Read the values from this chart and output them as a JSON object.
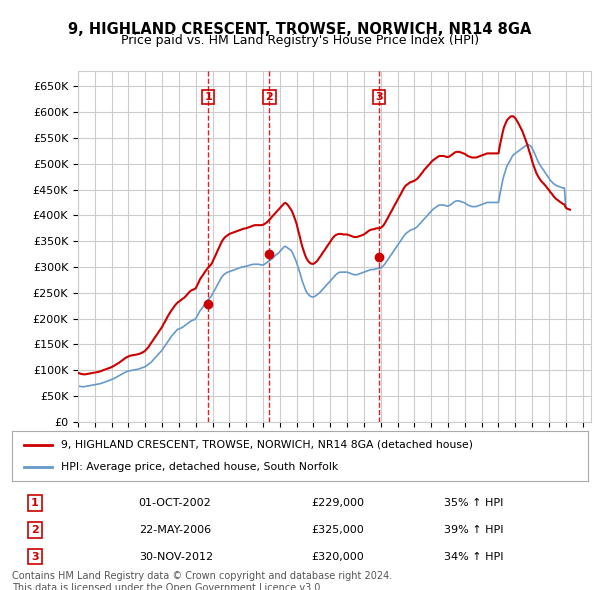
{
  "title": "9, HIGHLAND CRESCENT, TROWSE, NORWICH, NR14 8GA",
  "subtitle": "Price paid vs. HM Land Registry's House Price Index (HPI)",
  "title_fontsize": 11,
  "subtitle_fontsize": 10,
  "ylabel_ticks": [
    "£0",
    "£50K",
    "£100K",
    "£150K",
    "£200K",
    "£250K",
    "£300K",
    "£350K",
    "£400K",
    "£450K",
    "£500K",
    "£550K",
    "£600K",
    "£650K"
  ],
  "ytick_values": [
    0,
    50000,
    100000,
    150000,
    200000,
    250000,
    300000,
    350000,
    400000,
    450000,
    500000,
    550000,
    600000,
    650000
  ],
  "ylim": [
    0,
    680000
  ],
  "xlim_start": 1995.0,
  "xlim_end": 2025.5,
  "background_color": "#ffffff",
  "grid_color": "#cccccc",
  "sale_color": "#cc0000",
  "hpi_color": "#6699cc",
  "sale_marker_color": "#cc0000",
  "dashed_line_color": "#cc0000",
  "sales": [
    {
      "label": "1",
      "date_num": 2002.75,
      "price": 229000
    },
    {
      "label": "2",
      "date_num": 2006.38,
      "price": 325000
    },
    {
      "label": "3",
      "date_num": 2012.91,
      "price": 320000
    }
  ],
  "table_rows": [
    {
      "num": "1",
      "date": "01-OCT-2002",
      "price": "£229,000",
      "change": "35% ↑ HPI"
    },
    {
      "num": "2",
      "date": "22-MAY-2006",
      "price": "£325,000",
      "change": "39% ↑ HPI"
    },
    {
      "num": "3",
      "date": "30-NOV-2012",
      "price": "£320,000",
      "change": "34% ↑ HPI"
    }
  ],
  "legend_line1": "9, HIGHLAND CRESCENT, TROWSE, NORWICH, NR14 8GA (detached house)",
  "legend_line2": "HPI: Average price, detached house, South Norfolk",
  "footer": "Contains HM Land Registry data © Crown copyright and database right 2024.\nThis data is licensed under the Open Government Licence v3.0.",
  "hpi_data_x": [
    1995.0,
    1995.08,
    1995.17,
    1995.25,
    1995.33,
    1995.42,
    1995.5,
    1995.58,
    1995.67,
    1995.75,
    1995.83,
    1995.92,
    1996.0,
    1996.08,
    1996.17,
    1996.25,
    1996.33,
    1996.42,
    1996.5,
    1996.58,
    1996.67,
    1996.75,
    1996.83,
    1996.92,
    1997.0,
    1997.08,
    1997.17,
    1997.25,
    1997.33,
    1997.42,
    1997.5,
    1997.58,
    1997.67,
    1997.75,
    1997.83,
    1997.92,
    1998.0,
    1998.08,
    1998.17,
    1998.25,
    1998.33,
    1998.42,
    1998.5,
    1998.58,
    1998.67,
    1998.75,
    1998.83,
    1998.92,
    1999.0,
    1999.08,
    1999.17,
    1999.25,
    1999.33,
    1999.42,
    1999.5,
    1999.58,
    1999.67,
    1999.75,
    1999.83,
    1999.92,
    2000.0,
    2000.08,
    2000.17,
    2000.25,
    2000.33,
    2000.42,
    2000.5,
    2000.58,
    2000.67,
    2000.75,
    2000.83,
    2000.92,
    2001.0,
    2001.08,
    2001.17,
    2001.25,
    2001.33,
    2001.42,
    2001.5,
    2001.58,
    2001.67,
    2001.75,
    2001.83,
    2001.92,
    2002.0,
    2002.08,
    2002.17,
    2002.25,
    2002.33,
    2002.42,
    2002.5,
    2002.58,
    2002.67,
    2002.75,
    2002.83,
    2002.92,
    2003.0,
    2003.08,
    2003.17,
    2003.25,
    2003.33,
    2003.42,
    2003.5,
    2003.58,
    2003.67,
    2003.75,
    2003.83,
    2003.92,
    2004.0,
    2004.08,
    2004.17,
    2004.25,
    2004.33,
    2004.42,
    2004.5,
    2004.58,
    2004.67,
    2004.75,
    2004.83,
    2004.92,
    2005.0,
    2005.08,
    2005.17,
    2005.25,
    2005.33,
    2005.42,
    2005.5,
    2005.58,
    2005.67,
    2005.75,
    2005.83,
    2005.92,
    2006.0,
    2006.08,
    2006.17,
    2006.25,
    2006.33,
    2006.42,
    2006.5,
    2006.58,
    2006.67,
    2006.75,
    2006.83,
    2006.92,
    2007.0,
    2007.08,
    2007.17,
    2007.25,
    2007.33,
    2007.42,
    2007.5,
    2007.58,
    2007.67,
    2007.75,
    2007.83,
    2007.92,
    2008.0,
    2008.08,
    2008.17,
    2008.25,
    2008.33,
    2008.42,
    2008.5,
    2008.58,
    2008.67,
    2008.75,
    2008.83,
    2008.92,
    2009.0,
    2009.08,
    2009.17,
    2009.25,
    2009.33,
    2009.42,
    2009.5,
    2009.58,
    2009.67,
    2009.75,
    2009.83,
    2009.92,
    2010.0,
    2010.08,
    2010.17,
    2010.25,
    2010.33,
    2010.42,
    2010.5,
    2010.58,
    2010.67,
    2010.75,
    2010.83,
    2010.92,
    2011.0,
    2011.08,
    2011.17,
    2011.25,
    2011.33,
    2011.42,
    2011.5,
    2011.58,
    2011.67,
    2011.75,
    2011.83,
    2011.92,
    2012.0,
    2012.08,
    2012.17,
    2012.25,
    2012.33,
    2012.42,
    2012.5,
    2012.58,
    2012.67,
    2012.75,
    2012.83,
    2012.92,
    2013.0,
    2013.08,
    2013.17,
    2013.25,
    2013.33,
    2013.42,
    2013.5,
    2013.58,
    2013.67,
    2013.75,
    2013.83,
    2013.92,
    2014.0,
    2014.08,
    2014.17,
    2014.25,
    2014.33,
    2014.42,
    2014.5,
    2014.58,
    2014.67,
    2014.75,
    2014.83,
    2014.92,
    2015.0,
    2015.08,
    2015.17,
    2015.25,
    2015.33,
    2015.42,
    2015.5,
    2015.58,
    2015.67,
    2015.75,
    2015.83,
    2015.92,
    2016.0,
    2016.08,
    2016.17,
    2016.25,
    2016.33,
    2016.42,
    2016.5,
    2016.58,
    2016.67,
    2016.75,
    2016.83,
    2016.92,
    2017.0,
    2017.08,
    2017.17,
    2017.25,
    2017.33,
    2017.42,
    2017.5,
    2017.58,
    2017.67,
    2017.75,
    2017.83,
    2017.92,
    2018.0,
    2018.08,
    2018.17,
    2018.25,
    2018.33,
    2018.42,
    2018.5,
    2018.58,
    2018.67,
    2018.75,
    2018.83,
    2018.92,
    2019.0,
    2019.08,
    2019.17,
    2019.25,
    2019.33,
    2019.42,
    2019.5,
    2019.58,
    2019.67,
    2019.75,
    2019.83,
    2019.92,
    2020.0,
    2020.08,
    2020.17,
    2020.25,
    2020.33,
    2020.42,
    2020.5,
    2020.58,
    2020.67,
    2020.75,
    2020.83,
    2020.92,
    2021.0,
    2021.08,
    2021.17,
    2021.25,
    2021.33,
    2021.42,
    2021.5,
    2021.58,
    2021.67,
    2021.75,
    2021.83,
    2021.92,
    2022.0,
    2022.08,
    2022.17,
    2022.25,
    2022.33,
    2022.42,
    2022.5,
    2022.58,
    2022.67,
    2022.75,
    2022.83,
    2022.92,
    2023.0,
    2023.08,
    2023.17,
    2023.25,
    2023.33,
    2023.42,
    2023.5,
    2023.58,
    2023.67,
    2023.75,
    2023.83,
    2023.92,
    2024.0,
    2024.08,
    2024.17,
    2024.25
  ],
  "hpi_data_y": [
    70000,
    69000,
    68500,
    68000,
    68000,
    68500,
    69000,
    69500,
    70000,
    70500,
    71000,
    71500,
    72000,
    72500,
    73000,
    73500,
    74000,
    75000,
    76000,
    77000,
    78000,
    79000,
    80000,
    81000,
    82000,
    83000,
    84500,
    86000,
    87500,
    89000,
    90500,
    92000,
    93500,
    95000,
    96500,
    97500,
    98500,
    99000,
    99500,
    100000,
    100500,
    101000,
    101500,
    102000,
    103000,
    104000,
    105000,
    106000,
    107000,
    109000,
    111000,
    113000,
    115000,
    118000,
    121000,
    124000,
    127000,
    130000,
    133000,
    136000,
    139000,
    143000,
    147000,
    151000,
    155000,
    159000,
    163000,
    167000,
    170000,
    173000,
    176000,
    179000,
    180000,
    181000,
    182500,
    184000,
    186000,
    188000,
    190000,
    192000,
    194000,
    196000,
    197000,
    198000,
    200000,
    205000,
    210000,
    215000,
    218000,
    222000,
    226000,
    230000,
    234000,
    237000,
    240000,
    243000,
    248000,
    253000,
    258000,
    263000,
    268000,
    273000,
    278000,
    282000,
    285000,
    287000,
    289000,
    290000,
    291000,
    292000,
    293000,
    294000,
    295000,
    296000,
    297000,
    298000,
    299000,
    300000,
    300500,
    301000,
    301500,
    302000,
    303000,
    304000,
    304500,
    305000,
    305500,
    305000,
    305500,
    305000,
    304500,
    304000,
    304000,
    305000,
    307000,
    309000,
    311000,
    313000,
    315000,
    317000,
    320000,
    323000,
    325000,
    327000,
    330000,
    333000,
    336000,
    339000,
    340000,
    338000,
    336000,
    334000,
    332000,
    328000,
    322000,
    315000,
    308000,
    300000,
    291000,
    282000,
    273000,
    265000,
    258000,
    252000,
    248000,
    245000,
    243000,
    242000,
    242000,
    243000,
    245000,
    247000,
    249000,
    252000,
    255000,
    258000,
    261000,
    264000,
    267000,
    270000,
    273000,
    276000,
    279000,
    282000,
    285000,
    287000,
    289000,
    290000,
    290000,
    290000,
    290000,
    290000,
    290000,
    289000,
    288000,
    287000,
    286000,
    285000,
    285000,
    285000,
    286000,
    287000,
    288000,
    289000,
    290000,
    291000,
    292000,
    293000,
    294000,
    295000,
    295000,
    295000,
    296000,
    297000,
    297000,
    297000,
    298000,
    300000,
    303000,
    306000,
    310000,
    314000,
    318000,
    322000,
    326000,
    330000,
    334000,
    338000,
    342000,
    346000,
    350000,
    354000,
    358000,
    362000,
    365000,
    367000,
    369000,
    371000,
    372000,
    373000,
    374000,
    376000,
    378000,
    381000,
    384000,
    387000,
    390000,
    393000,
    396000,
    399000,
    402000,
    405000,
    408000,
    411000,
    413000,
    415000,
    417000,
    419000,
    420000,
    420000,
    420000,
    420000,
    419000,
    418000,
    418000,
    419000,
    421000,
    423000,
    425000,
    427000,
    428000,
    428000,
    428000,
    427000,
    426000,
    425000,
    424000,
    422000,
    420000,
    419000,
    418000,
    417000,
    417000,
    417000,
    417000,
    418000,
    419000,
    420000,
    421000,
    422000,
    423000,
    424000,
    425000,
    425000,
    425000,
    425000,
    425000,
    425000,
    425000,
    425000,
    425000,
    440000,
    455000,
    468000,
    478000,
    487000,
    495000,
    500000,
    505000,
    510000,
    515000,
    518000,
    520000,
    522000,
    524000,
    526000,
    528000,
    530000,
    532000,
    534000,
    536000,
    537000,
    536000,
    534000,
    530000,
    525000,
    518000,
    512000,
    506000,
    500000,
    496000,
    492000,
    488000,
    484000,
    480000,
    476000,
    472000,
    468000,
    465000,
    462000,
    460000,
    458000,
    457000,
    456000,
    455000,
    454000,
    453000,
    453000,
    415000,
    413000,
    412000,
    411000
  ],
  "sale_data_x": [
    1995.0,
    1995.08,
    1995.17,
    1995.25,
    1995.33,
    1995.42,
    1995.5,
    1995.58,
    1995.67,
    1995.75,
    1995.83,
    1995.92,
    1996.0,
    1996.08,
    1996.17,
    1996.25,
    1996.33,
    1996.42,
    1996.5,
    1996.58,
    1996.67,
    1996.75,
    1996.83,
    1996.92,
    1997.0,
    1997.08,
    1997.17,
    1997.25,
    1997.33,
    1997.42,
    1997.5,
    1997.58,
    1997.67,
    1997.75,
    1997.83,
    1997.92,
    1998.0,
    1998.08,
    1998.17,
    1998.25,
    1998.33,
    1998.42,
    1998.5,
    1998.58,
    1998.67,
    1998.75,
    1998.83,
    1998.92,
    1999.0,
    1999.08,
    1999.17,
    1999.25,
    1999.33,
    1999.42,
    1999.5,
    1999.58,
    1999.67,
    1999.75,
    1999.83,
    1999.92,
    2000.0,
    2000.08,
    2000.17,
    2000.25,
    2000.33,
    2000.42,
    2000.5,
    2000.58,
    2000.67,
    2000.75,
    2000.83,
    2000.92,
    2001.0,
    2001.08,
    2001.17,
    2001.25,
    2001.33,
    2001.42,
    2001.5,
    2001.58,
    2001.67,
    2001.75,
    2001.83,
    2001.92,
    2002.0,
    2002.08,
    2002.17,
    2002.25,
    2002.33,
    2002.42,
    2002.5,
    2002.58,
    2002.67,
    2002.75,
    2002.83,
    2002.92,
    2003.0,
    2003.08,
    2003.17,
    2003.25,
    2003.33,
    2003.42,
    2003.5,
    2003.58,
    2003.67,
    2003.75,
    2003.83,
    2003.92,
    2004.0,
    2004.08,
    2004.17,
    2004.25,
    2004.33,
    2004.42,
    2004.5,
    2004.58,
    2004.67,
    2004.75,
    2004.83,
    2004.92,
    2005.0,
    2005.08,
    2005.17,
    2005.25,
    2005.33,
    2005.42,
    2005.5,
    2005.58,
    2005.67,
    2005.75,
    2005.83,
    2005.92,
    2006.0,
    2006.08,
    2006.17,
    2006.25,
    2006.33,
    2006.42,
    2006.5,
    2006.58,
    2006.67,
    2006.75,
    2006.83,
    2006.92,
    2007.0,
    2007.08,
    2007.17,
    2007.25,
    2007.33,
    2007.42,
    2007.5,
    2007.58,
    2007.67,
    2007.75,
    2007.83,
    2007.92,
    2008.0,
    2008.08,
    2008.17,
    2008.25,
    2008.33,
    2008.42,
    2008.5,
    2008.58,
    2008.67,
    2008.75,
    2008.83,
    2008.92,
    2009.0,
    2009.08,
    2009.17,
    2009.25,
    2009.33,
    2009.42,
    2009.5,
    2009.58,
    2009.67,
    2009.75,
    2009.83,
    2009.92,
    2010.0,
    2010.08,
    2010.17,
    2010.25,
    2010.33,
    2010.42,
    2010.5,
    2010.58,
    2010.67,
    2010.75,
    2010.83,
    2010.92,
    2011.0,
    2011.08,
    2011.17,
    2011.25,
    2011.33,
    2011.42,
    2011.5,
    2011.58,
    2011.67,
    2011.75,
    2011.83,
    2011.92,
    2012.0,
    2012.08,
    2012.17,
    2012.25,
    2012.33,
    2012.42,
    2012.5,
    2012.58,
    2012.67,
    2012.75,
    2012.83,
    2012.92,
    2013.0,
    2013.08,
    2013.17,
    2013.25,
    2013.33,
    2013.42,
    2013.5,
    2013.58,
    2013.67,
    2013.75,
    2013.83,
    2013.92,
    2014.0,
    2014.08,
    2014.17,
    2014.25,
    2014.33,
    2014.42,
    2014.5,
    2014.58,
    2014.67,
    2014.75,
    2014.83,
    2014.92,
    2015.0,
    2015.08,
    2015.17,
    2015.25,
    2015.33,
    2015.42,
    2015.5,
    2015.58,
    2015.67,
    2015.75,
    2015.83,
    2015.92,
    2016.0,
    2016.08,
    2016.17,
    2016.25,
    2016.33,
    2016.42,
    2016.5,
    2016.58,
    2016.67,
    2016.75,
    2016.83,
    2016.92,
    2017.0,
    2017.08,
    2017.17,
    2017.25,
    2017.33,
    2017.42,
    2017.5,
    2017.58,
    2017.67,
    2017.75,
    2017.83,
    2017.92,
    2018.0,
    2018.08,
    2018.17,
    2018.25,
    2018.33,
    2018.42,
    2018.5,
    2018.58,
    2018.67,
    2018.75,
    2018.83,
    2018.92,
    2019.0,
    2019.08,
    2019.17,
    2019.25,
    2019.33,
    2019.42,
    2019.5,
    2019.58,
    2019.67,
    2019.75,
    2019.83,
    2019.92,
    2020.0,
    2020.08,
    2020.17,
    2020.25,
    2020.33,
    2020.42,
    2020.5,
    2020.58,
    2020.67,
    2020.75,
    2020.83,
    2020.92,
    2021.0,
    2021.08,
    2021.17,
    2021.25,
    2021.33,
    2021.42,
    2021.5,
    2021.58,
    2021.67,
    2021.75,
    2021.83,
    2021.92,
    2022.0,
    2022.08,
    2022.17,
    2022.25,
    2022.33,
    2022.42,
    2022.5,
    2022.58,
    2022.67,
    2022.75,
    2022.83,
    2022.92,
    2023.0,
    2023.08,
    2023.17,
    2023.25,
    2023.33,
    2023.42,
    2023.5,
    2023.58,
    2023.67,
    2023.75,
    2023.83,
    2023.92,
    2024.0,
    2024.08,
    2024.17,
    2024.25
  ],
  "sale_data_y": [
    95000,
    94000,
    93000,
    92500,
    92000,
    92000,
    92500,
    93000,
    93500,
    94000,
    94500,
    95000,
    95500,
    96000,
    96500,
    97000,
    98000,
    99000,
    100000,
    101000,
    102000,
    103000,
    104000,
    105000,
    106000,
    107500,
    109000,
    110500,
    112000,
    114000,
    116000,
    118000,
    120000,
    122000,
    124000,
    125500,
    127000,
    128000,
    128500,
    129000,
    129500,
    130000,
    130500,
    131000,
    132000,
    133000,
    134500,
    136000,
    138000,
    141000,
    144000,
    148000,
    152000,
    156000,
    160000,
    164000,
    168000,
    172000,
    176000,
    180000,
    184000,
    189000,
    194000,
    199000,
    204000,
    209000,
    213000,
    217000,
    221000,
    225000,
    228000,
    231000,
    233000,
    235000,
    237000,
    239000,
    241000,
    244000,
    247000,
    250000,
    253000,
    255000,
    256000,
    257000,
    259000,
    264000,
    270000,
    276000,
    280000,
    284000,
    288000,
    292000,
    296000,
    299000,
    302000,
    305000,
    310000,
    316000,
    322000,
    328000,
    334000,
    340000,
    346000,
    351000,
    355000,
    358000,
    360000,
    362000,
    364000,
    365000,
    366000,
    367000,
    368000,
    369000,
    370000,
    371000,
    372000,
    373000,
    374000,
    374500,
    375000,
    376000,
    377000,
    378000,
    379000,
    380000,
    381000,
    381000,
    381000,
    381000,
    381000,
    381000,
    382000,
    383000,
    385000,
    387000,
    390000,
    393000,
    396000,
    399000,
    402000,
    405000,
    408000,
    411000,
    414000,
    417000,
    420000,
    423000,
    424000,
    422000,
    419000,
    415000,
    411000,
    406000,
    399000,
    391000,
    383000,
    372000,
    361000,
    350000,
    340000,
    331000,
    323000,
    317000,
    312000,
    309000,
    307000,
    306000,
    306000,
    308000,
    310000,
    313000,
    317000,
    321000,
    325000,
    329000,
    333000,
    337000,
    341000,
    345000,
    349000,
    353000,
    357000,
    360000,
    362000,
    363000,
    364000,
    364000,
    364000,
    363000,
    363000,
    363000,
    363000,
    362000,
    361000,
    360000,
    359000,
    358000,
    358000,
    358000,
    359000,
    360000,
    361000,
    362000,
    363000,
    365000,
    367000,
    369000,
    371000,
    372000,
    373000,
    373000,
    374000,
    375000,
    375000,
    375000,
    376000,
    378000,
    381000,
    385000,
    390000,
    395000,
    400000,
    405000,
    410000,
    415000,
    420000,
    425000,
    430000,
    435000,
    440000,
    445000,
    450000,
    455000,
    458000,
    460000,
    462000,
    464000,
    465000,
    466000,
    467000,
    469000,
    471000,
    474000,
    477000,
    481000,
    484000,
    488000,
    491000,
    494000,
    497000,
    500000,
    503000,
    506000,
    508000,
    510000,
    512000,
    514000,
    515000,
    515000,
    515000,
    515000,
    514000,
    513000,
    513000,
    514000,
    516000,
    518000,
    520000,
    522000,
    523000,
    523000,
    523000,
    522000,
    521000,
    520000,
    519000,
    517000,
    515000,
    514000,
    513000,
    512000,
    512000,
    512000,
    512000,
    513000,
    514000,
    515000,
    516000,
    517000,
    518000,
    519000,
    520000,
    520000,
    520000,
    520000,
    520000,
    520000,
    520000,
    520000,
    520000,
    535000,
    549000,
    561000,
    571000,
    578000,
    584000,
    587000,
    590000,
    592000,
    592000,
    591000,
    588000,
    584000,
    579000,
    574000,
    569000,
    563000,
    556000,
    549000,
    541000,
    533000,
    524000,
    515000,
    505000,
    497000,
    489000,
    482000,
    477000,
    472000,
    468000,
    465000,
    462000,
    459000,
    456000,
    452000,
    449000,
    445000,
    442000,
    438000,
    435000,
    432000,
    430000,
    428000,
    426000,
    424000,
    422000,
    421000,
    415000,
    413000,
    412000,
    411000
  ]
}
